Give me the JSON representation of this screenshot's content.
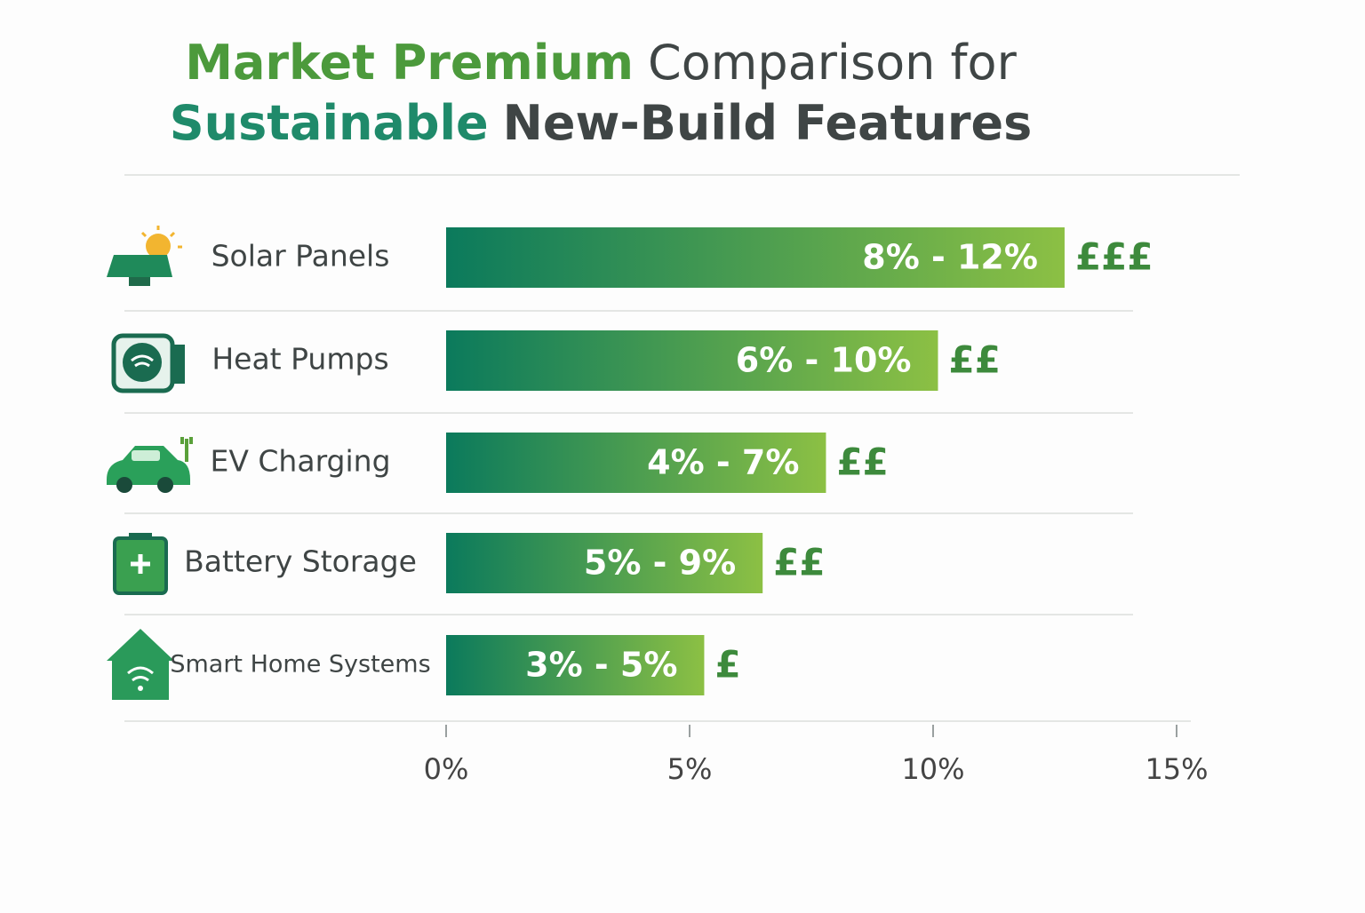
{
  "chart_data": {
    "type": "bar",
    "orientation": "horizontal",
    "title": [
      [
        {
          "text": "Market Premium",
          "color": "#4c9a3c",
          "bold": true
        },
        {
          "text": "Comparison for",
          "color": "#3f4545",
          "bold": false
        }
      ],
      [
        {
          "text": "Sustainable",
          "color": "#1f8a6a",
          "bold": true
        },
        {
          "text": "New-Build Features",
          "color": "#3f4545",
          "bold": true
        }
      ]
    ],
    "categories": [
      "Solar Panels",
      "Heat Pumps",
      "EV Charging",
      "Battery Storage",
      "Smart Home Systems"
    ],
    "values": [
      12.7,
      10.1,
      7.8,
      6.5,
      5.3
    ],
    "premium_ranges": [
      "8% - 12%",
      "6% - 10%",
      "4% - 7%",
      "5% - 9%",
      "3% - 5%"
    ],
    "cost_labels": [
      "£££",
      "££",
      "££",
      "££",
      "£"
    ],
    "color": [
      "#0b7a5c",
      "#8cc044"
    ],
    "xlim": [
      0,
      15
    ],
    "xticks": [
      {
        "value": 0,
        "label": "0%"
      },
      {
        "value": 5,
        "label": "5%"
      },
      {
        "value": 10,
        "label": "10%"
      },
      {
        "value": 15,
        "label": "15%"
      }
    ],
    "grid": false
  }
}
